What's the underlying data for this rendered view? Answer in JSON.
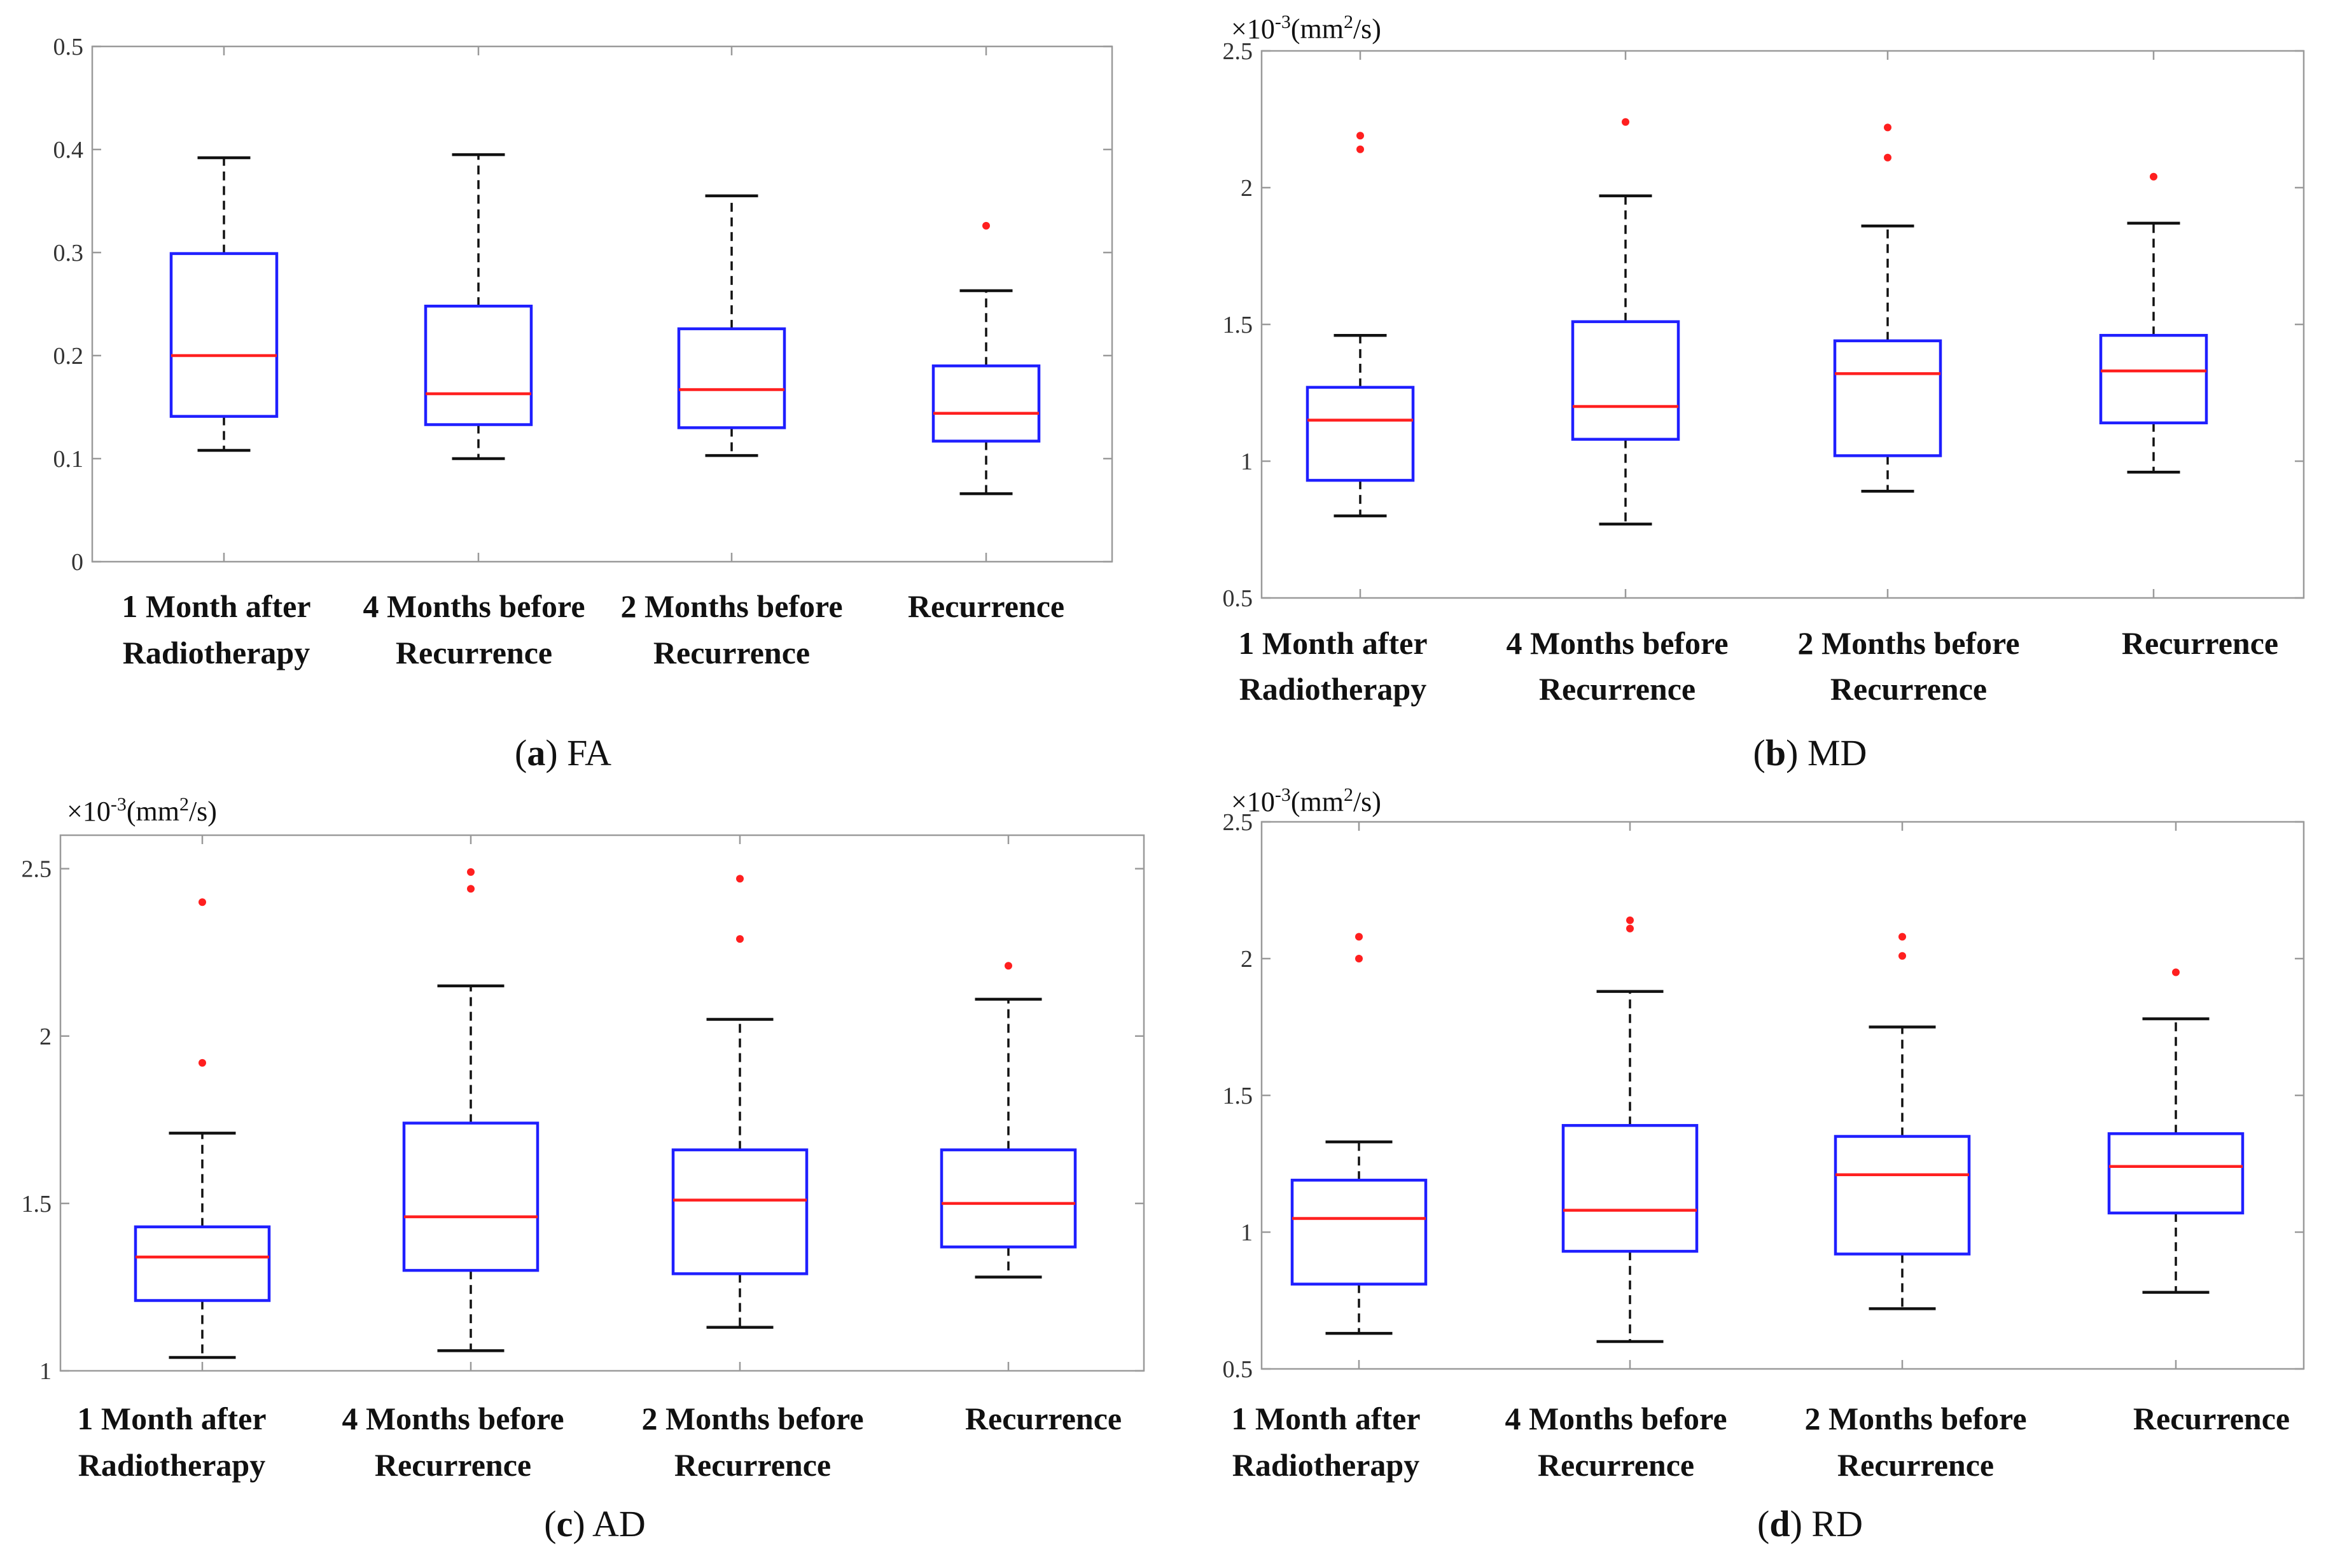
{
  "chart_data": [
    {
      "type": "box",
      "panel_id": "a",
      "caption_letter": "a",
      "caption_name": "FA",
      "scale_prefix": "",
      "unit_label": "",
      "ylim": [
        0,
        0.5
      ],
      "y_ticks": [
        {
          "value": 0,
          "label": "0"
        },
        {
          "value": 0.1,
          "label": "0.1"
        },
        {
          "value": 0.2,
          "label": "0.2"
        },
        {
          "value": 0.3,
          "label": "0.3"
        },
        {
          "value": 0.4,
          "label": "0.4"
        },
        {
          "value": 0.5,
          "label": "0.5"
        }
      ],
      "categories": [
        {
          "line1": "1 Month after",
          "line2": "Radiotherapy"
        },
        {
          "line1": "4 Months before",
          "line2": "Recurrence"
        },
        {
          "line1": "2 Months before",
          "line2": "Recurrence"
        },
        {
          "line1": "Recurrence",
          "line2": ""
        }
      ],
      "boxes": [
        {
          "whisker_low": 0.108,
          "q1": 0.141,
          "median": 0.2,
          "q3": 0.299,
          "whisker_high": 0.392,
          "outliers": []
        },
        {
          "whisker_low": 0.1,
          "q1": 0.133,
          "median": 0.163,
          "q3": 0.248,
          "whisker_high": 0.395,
          "outliers": []
        },
        {
          "whisker_low": 0.103,
          "q1": 0.13,
          "median": 0.167,
          "q3": 0.226,
          "whisker_high": 0.355,
          "outliers": []
        },
        {
          "whisker_low": 0.066,
          "q1": 0.117,
          "median": 0.144,
          "q3": 0.19,
          "whisker_high": 0.263,
          "outliers": [
            0.326
          ]
        }
      ]
    },
    {
      "type": "box",
      "panel_id": "b",
      "caption_letter": "b",
      "caption_name": "MD",
      "scale_prefix": "×10",
      "scale_exponent": "-3",
      "unit_prefix": "(mm",
      "unit_exponent": "2",
      "unit_suffix": "/s)",
      "ylim": [
        0.5,
        2.5
      ],
      "y_ticks": [
        {
          "value": 0.5,
          "label": "0.5"
        },
        {
          "value": 1.0,
          "label": "1"
        },
        {
          "value": 1.5,
          "label": "1.5"
        },
        {
          "value": 2.0,
          "label": "2"
        },
        {
          "value": 2.5,
          "label": "2.5"
        }
      ],
      "categories": [
        {
          "line1": "1 Month after",
          "line2": "Radiotherapy"
        },
        {
          "line1": "4 Months before",
          "line2": "Recurrence"
        },
        {
          "line1": "2 Months before",
          "line2": "Recurrence"
        },
        {
          "line1": "Recurrence",
          "line2": ""
        }
      ],
      "boxes": [
        {
          "whisker_low": 0.8,
          "q1": 0.93,
          "median": 1.15,
          "q3": 1.27,
          "whisker_high": 1.46,
          "outliers": [
            2.14,
            2.19
          ]
        },
        {
          "whisker_low": 0.77,
          "q1": 1.08,
          "median": 1.2,
          "q3": 1.51,
          "whisker_high": 1.97,
          "outliers": [
            2.24
          ]
        },
        {
          "whisker_low": 0.89,
          "q1": 1.02,
          "median": 1.32,
          "q3": 1.44,
          "whisker_high": 1.86,
          "outliers": [
            2.11,
            2.22
          ]
        },
        {
          "whisker_low": 0.96,
          "q1": 1.14,
          "median": 1.33,
          "q3": 1.46,
          "whisker_high": 1.87,
          "outliers": [
            2.04
          ]
        }
      ]
    },
    {
      "type": "box",
      "panel_id": "c",
      "caption_letter": "c",
      "caption_name": "AD",
      "scale_prefix": "×10",
      "scale_exponent": "-3",
      "unit_prefix": "(mm",
      "unit_exponent": "2",
      "unit_suffix": "/s)",
      "ylim": [
        1.0,
        2.6
      ],
      "y_ticks": [
        {
          "value": 1.0,
          "label": "1"
        },
        {
          "value": 1.5,
          "label": "1.5"
        },
        {
          "value": 2.0,
          "label": "2"
        },
        {
          "value": 2.5,
          "label": "2.5"
        }
      ],
      "categories": [
        {
          "line1": "1 Month after",
          "line2": "Radiotherapy"
        },
        {
          "line1": "4 Months before",
          "line2": "Recurrence"
        },
        {
          "line1": "2 Months before",
          "line2": "Recurrence"
        },
        {
          "line1": "Recurrence",
          "line2": ""
        }
      ],
      "boxes": [
        {
          "whisker_low": 1.04,
          "q1": 1.21,
          "median": 1.34,
          "q3": 1.43,
          "whisker_high": 1.71,
          "outliers": [
            1.92,
            2.4
          ]
        },
        {
          "whisker_low": 1.06,
          "q1": 1.3,
          "median": 1.46,
          "q3": 1.74,
          "whisker_high": 2.15,
          "outliers": [
            2.44,
            2.49
          ]
        },
        {
          "whisker_low": 1.13,
          "q1": 1.29,
          "median": 1.51,
          "q3": 1.66,
          "whisker_high": 2.05,
          "outliers": [
            2.29,
            2.47
          ]
        },
        {
          "whisker_low": 1.28,
          "q1": 1.37,
          "median": 1.5,
          "q3": 1.66,
          "whisker_high": 2.11,
          "outliers": [
            2.21
          ]
        }
      ]
    },
    {
      "type": "box",
      "panel_id": "d",
      "caption_letter": "d",
      "caption_name": "RD",
      "scale_prefix": "×10",
      "scale_exponent": "-3",
      "unit_prefix": "(mm",
      "unit_exponent": "2",
      "unit_suffix": "/s)",
      "ylim": [
        0.5,
        2.5
      ],
      "y_ticks": [
        {
          "value": 0.5,
          "label": "0.5"
        },
        {
          "value": 1.0,
          "label": "1"
        },
        {
          "value": 1.5,
          "label": "1.5"
        },
        {
          "value": 2.0,
          "label": "2"
        },
        {
          "value": 2.5,
          "label": "2.5"
        }
      ],
      "categories": [
        {
          "line1": "1 Month after",
          "line2": "Radiotherapy"
        },
        {
          "line1": "4 Months before",
          "line2": "Recurrence"
        },
        {
          "line1": "2 Months before",
          "line2": "Recurrence"
        },
        {
          "line1": "Recurrence",
          "line2": ""
        }
      ],
      "boxes": [
        {
          "whisker_low": 0.63,
          "q1": 0.81,
          "median": 1.05,
          "q3": 1.19,
          "whisker_high": 1.33,
          "outliers": [
            2.0,
            2.08
          ]
        },
        {
          "whisker_low": 0.6,
          "q1": 0.93,
          "median": 1.08,
          "q3": 1.39,
          "whisker_high": 1.88,
          "outliers": [
            2.11,
            2.14
          ]
        },
        {
          "whisker_low": 0.72,
          "q1": 0.92,
          "median": 1.21,
          "q3": 1.35,
          "whisker_high": 1.75,
          "outliers": [
            2.01,
            2.08
          ]
        },
        {
          "whisker_low": 0.78,
          "q1": 1.07,
          "median": 1.24,
          "q3": 1.36,
          "whisker_high": 1.78,
          "outliers": [
            1.95
          ]
        }
      ]
    }
  ]
}
